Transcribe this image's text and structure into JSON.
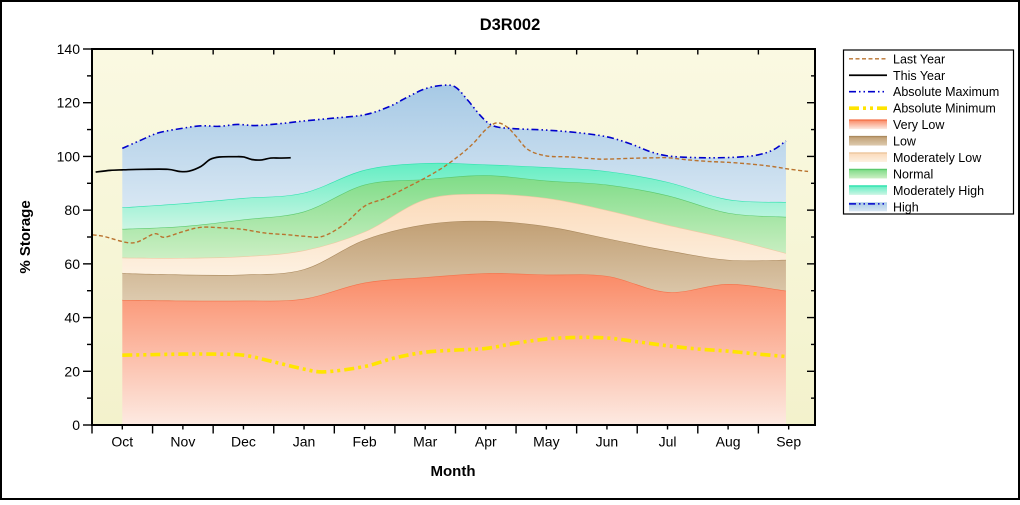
{
  "chart": {
    "title": "D3R002",
    "xlabel": "Month",
    "ylabel": "% Storage"
  },
  "colors": {
    "figure_bg": "#ffffff",
    "plot_bg_top": "#faf9e2",
    "plot_bg_bottom": "#f3f2cc",
    "axis": "#000000",
    "last_year_line": "#b9732f",
    "this_year_line": "#000000",
    "absolute_maximum_line": "#0000cc",
    "absolute_minimum_line": "#ffe400"
  },
  "legend": {
    "items": [
      {
        "label": "Last Year",
        "type": "line",
        "color": "#b9732f",
        "width": 1.4,
        "dash": "4 2.5"
      },
      {
        "label": "This Year",
        "type": "line",
        "color": "#000000",
        "width": 1.7,
        "dash": ""
      },
      {
        "label": "Absolute Maximum",
        "type": "line",
        "color": "#0000cc",
        "width": 1.6,
        "dash": "7 3 1.5 3 1.5 3"
      },
      {
        "label": "Absolute Minimum",
        "type": "line",
        "color": "#ffe400",
        "width": 3.6,
        "dash": "10 4 3 4 3 4"
      },
      {
        "label": "Very Low",
        "type": "band",
        "top": "#fa8a66",
        "bottom": "#fdeae2",
        "edge": "#f4724a"
      },
      {
        "label": "Low",
        "type": "band",
        "top": "#c19f74",
        "bottom": "#ddcaae",
        "edge": "#ab8a5e"
      },
      {
        "label": "Moderately Low",
        "type": "band",
        "top": "#fbdaba",
        "bottom": "#fdf1e1",
        "edge": "#eec9a2"
      },
      {
        "label": "Normal",
        "type": "band",
        "top": "#7fdc87",
        "bottom": "#ccefc4",
        "edge": "#5bc96e"
      },
      {
        "label": "Moderately High",
        "type": "band",
        "top": "#63eec3",
        "bottom": "#ccf5e4",
        "edge": "#2ee2ae"
      },
      {
        "label": "High",
        "type": "band_line",
        "top": "#a6c9e5",
        "bottom": "#d8e7f3",
        "line_color": "#0000cc",
        "line_dash": "7 3 1.5 3 1.5 3"
      }
    ]
  },
  "chart_data": {
    "type": "area",
    "title": "D3R002",
    "xlabel": "Month",
    "ylabel": "% Storage",
    "ylim": [
      0,
      140
    ],
    "y_major_step": 20,
    "y_minor_step": 10,
    "grid": false,
    "legend_position": "right",
    "months": [
      "Oct",
      "Nov",
      "Dec",
      "Jan",
      "Feb",
      "Mar",
      "Apr",
      "May",
      "Jun",
      "Jul",
      "Aug",
      "Sep"
    ],
    "band_month_positions": [
      0,
      1,
      2,
      3,
      4,
      5,
      6,
      7,
      8,
      9,
      10,
      10.955
    ],
    "boundaries": {
      "very_low_top": [
        46.5,
        46.3,
        46.3,
        47,
        53,
        55,
        56.5,
        56,
        55.5,
        49.5,
        52.5,
        50
      ],
      "low_top": [
        56.5,
        56,
        56,
        58,
        69,
        74.7,
        76,
        74,
        69.5,
        65,
        61.5,
        61.5
      ],
      "moderately_low_top": [
        62.3,
        62.2,
        62.8,
        65,
        72,
        84,
        86,
        84.5,
        80,
        74.5,
        69.5,
        64
      ],
      "normal_top": [
        73,
        74,
        76.5,
        79.5,
        89.5,
        91.5,
        93,
        91,
        89.5,
        85.5,
        79,
        77.5
      ],
      "moderately_high_top": [
        81,
        82.5,
        84.5,
        86.5,
        95,
        97.5,
        97,
        96,
        94.5,
        90.5,
        84,
        83
      ]
    },
    "bands": [
      {
        "name": "Very Low",
        "top_boundary": "very_low_top",
        "bottom_boundary": "zero",
        "color_top": "#fa8a66",
        "color_bottom": "#fdeae2",
        "edge": "#f4724a"
      },
      {
        "name": "Low",
        "top_boundary": "low_top",
        "bottom_boundary": "very_low_top",
        "color_top": "#c19f74",
        "color_bottom": "#ddcaae",
        "edge": "#ab8a5e"
      },
      {
        "name": "Moderately Low",
        "top_boundary": "moderately_low_top",
        "bottom_boundary": "low_top",
        "color_top": "#fbdaba",
        "color_bottom": "#fdf1e1",
        "edge": "#eec9a2"
      },
      {
        "name": "Normal",
        "top_boundary": "normal_top",
        "bottom_boundary": "moderately_low_top",
        "color_top": "#7fdc87",
        "color_bottom": "#ccefc4",
        "edge": "#5bc96e"
      },
      {
        "name": "Moderately High",
        "top_boundary": "moderately_high_top",
        "bottom_boundary": "normal_top",
        "color_top": "#63eec3",
        "color_bottom": "#ccf5e4",
        "edge": "#2ee2ae"
      },
      {
        "name": "High",
        "top_boundary": "absolute_maximum",
        "bottom_boundary": "moderately_high_top",
        "color_top": "#a6c9e5",
        "color_bottom": "#d8e7f3",
        "edge": null
      }
    ],
    "lines": [
      {
        "name": "Absolute Maximum",
        "color": "#0000cc",
        "width": 1.6,
        "dash": "7 3 1.5 3 1.5 3",
        "points": [
          [
            0,
            103
          ],
          [
            0.3,
            106
          ],
          [
            0.6,
            108.8
          ],
          [
            1,
            110.5
          ],
          [
            1.3,
            111.4
          ],
          [
            1.6,
            111.2
          ],
          [
            1.9,
            111.9
          ],
          [
            2.2,
            111.5
          ],
          [
            2.6,
            112.2
          ],
          [
            3,
            113.2
          ],
          [
            3.5,
            114.3
          ],
          [
            4,
            115.5
          ],
          [
            4.4,
            118.5
          ],
          [
            4.7,
            122
          ],
          [
            5,
            125.2
          ],
          [
            5.3,
            126.5
          ],
          [
            5.5,
            125.8
          ],
          [
            5.7,
            121
          ],
          [
            5.9,
            115.5
          ],
          [
            6.05,
            112.3
          ],
          [
            6.2,
            110.9
          ],
          [
            6.5,
            110.3
          ],
          [
            7,
            109.8
          ],
          [
            7.5,
            108.9
          ],
          [
            8,
            107.3
          ],
          [
            8.4,
            104.6
          ],
          [
            8.7,
            101.9
          ],
          [
            9,
            100.2
          ],
          [
            9.4,
            99.6
          ],
          [
            9.8,
            99.5
          ],
          [
            10.2,
            99.8
          ],
          [
            10.5,
            100.6
          ],
          [
            10.75,
            102.5
          ],
          [
            10.955,
            105.8
          ]
        ]
      },
      {
        "name": "Absolute Minimum",
        "color": "#ffe400",
        "width": 3.6,
        "dash": "10 4 3 4 3 4",
        "points": [
          [
            0,
            26
          ],
          [
            0.5,
            26.2
          ],
          [
            1,
            26.4
          ],
          [
            1.5,
            26.4
          ],
          [
            2,
            26
          ],
          [
            2.5,
            23.5
          ],
          [
            3,
            20.8
          ],
          [
            3.35,
            19.8
          ],
          [
            4,
            21.8
          ],
          [
            4.5,
            25
          ],
          [
            5,
            27.1
          ],
          [
            5.5,
            27.9
          ],
          [
            6,
            28.5
          ],
          [
            6.5,
            30.5
          ],
          [
            7,
            32
          ],
          [
            7.5,
            32.6
          ],
          [
            8,
            32.4
          ],
          [
            8.5,
            31
          ],
          [
            9,
            29.5
          ],
          [
            9.5,
            28.3
          ],
          [
            10,
            27.5
          ],
          [
            10.5,
            26.4
          ],
          [
            10.955,
            25.5
          ]
        ]
      },
      {
        "name": "Last Year",
        "color": "#b9732f",
        "width": 1.4,
        "dash": "4 2.5",
        "points": [
          [
            -0.49,
            70.8
          ],
          [
            -0.3,
            70.2
          ],
          [
            0.17,
            67.8
          ],
          [
            0.53,
            71.2
          ],
          [
            0.69,
            69.9
          ],
          [
            1,
            72
          ],
          [
            1.3,
            73.6
          ],
          [
            1.65,
            73.4
          ],
          [
            2,
            72.8
          ],
          [
            2.35,
            71.5
          ],
          [
            2.7,
            70.9
          ],
          [
            3,
            70.3
          ],
          [
            3.3,
            70.2
          ],
          [
            3.65,
            74.5
          ],
          [
            4,
            81.5
          ],
          [
            4.35,
            84.5
          ],
          [
            4.7,
            88.5
          ],
          [
            5,
            92
          ],
          [
            5.3,
            96
          ],
          [
            5.6,
            101
          ],
          [
            5.8,
            105
          ],
          [
            6,
            110
          ],
          [
            6.18,
            112.5
          ],
          [
            6.35,
            111
          ],
          [
            6.5,
            107.5
          ],
          [
            6.7,
            102.5
          ],
          [
            7,
            100.2
          ],
          [
            7.4,
            99.8
          ],
          [
            7.8,
            99.1
          ],
          [
            8,
            99
          ],
          [
            8.4,
            99.3
          ],
          [
            8.8,
            99.5
          ],
          [
            9,
            99.5
          ],
          [
            9.35,
            98.7
          ],
          [
            9.7,
            98.1
          ],
          [
            10,
            97.8
          ],
          [
            10.4,
            97.1
          ],
          [
            10.75,
            96.2
          ],
          [
            11,
            95.3
          ],
          [
            11.32,
            94.4
          ]
        ]
      },
      {
        "name": "This Year",
        "color": "#000000",
        "width": 1.7,
        "dash": "",
        "points": [
          [
            -0.44,
            94.2
          ],
          [
            -0.2,
            94.8
          ],
          [
            0,
            95
          ],
          [
            0.35,
            95.2
          ],
          [
            0.75,
            95.2
          ],
          [
            0.95,
            94.4
          ],
          [
            1.1,
            94.5
          ],
          [
            1.3,
            96.3
          ],
          [
            1.45,
            98.9
          ],
          [
            1.6,
            99.8
          ],
          [
            1.85,
            99.9
          ],
          [
            2,
            99.8
          ],
          [
            2.15,
            98.8
          ],
          [
            2.3,
            98.7
          ],
          [
            2.45,
            99.4
          ],
          [
            2.6,
            99.4
          ],
          [
            2.78,
            99.5
          ]
        ]
      }
    ]
  }
}
